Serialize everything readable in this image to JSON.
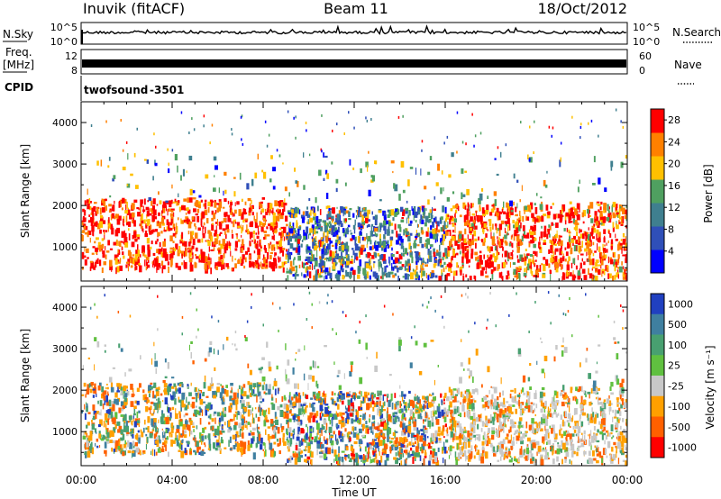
{
  "header": {
    "station": "Inuvik (fitACF)",
    "beam": "Beam 11",
    "date": "18/Oct/2012"
  },
  "strips": {
    "nsky_label": "N.Sky",
    "nsky_ticks": [
      "10^5",
      "10^0"
    ],
    "nsearch_label": "N.Search",
    "nsearch_ticks": [
      "10^5",
      "10^0"
    ],
    "freq_label_line1": "Freq.",
    "freq_label_line2": "[MHz]",
    "freq_ticks": [
      "12",
      "8"
    ],
    "nave_label": "Nave",
    "nave_ticks": [
      "60",
      "0"
    ],
    "cpid_label": "CPID",
    "cpid_name": "twofsound",
    "cpid_value": "-3501"
  },
  "chart_data": [
    {
      "type": "heatmap",
      "panel": "power",
      "ylabel": "Slant Range [km]",
      "x_range_hours": [
        0,
        24
      ],
      "ylim_km": [
        180,
        4500
      ],
      "yticks": [
        1000,
        2000,
        3000,
        4000
      ],
      "colorbar": {
        "label": "Power [dB]",
        "ticks": [
          4,
          8,
          12,
          16,
          20,
          24,
          28
        ],
        "range": [
          0,
          30
        ],
        "colors": [
          "#0000ff",
          "#2f4fb8",
          "#3f7f8f",
          "#4fa060",
          "#ffc000",
          "#ff8000",
          "#ff0000"
        ]
      }
    },
    {
      "type": "heatmap",
      "panel": "velocity",
      "ylabel": "Slant Range [km]",
      "x_range_hours": [
        0,
        24
      ],
      "ylim_km": [
        180,
        4500
      ],
      "yticks": [
        1000,
        2000,
        3000,
        4000
      ],
      "colorbar": {
        "label": "Velocity [m s⁻¹]",
        "ticks": [
          "1000",
          "500",
          "100",
          "25",
          "-25",
          "-100",
          "-500",
          "-1000"
        ],
        "colors": [
          "#2040c0",
          "#3f7fa0",
          "#48a070",
          "#60c040",
          "#c8c8c8",
          "#ffa000",
          "#ff6000",
          "#ff0000"
        ]
      }
    }
  ],
  "time_axis": {
    "ticks": [
      "00:00",
      "04:00",
      "08:00",
      "12:00",
      "16:00",
      "20:00",
      "00:00"
    ],
    "label": "Time UT"
  }
}
